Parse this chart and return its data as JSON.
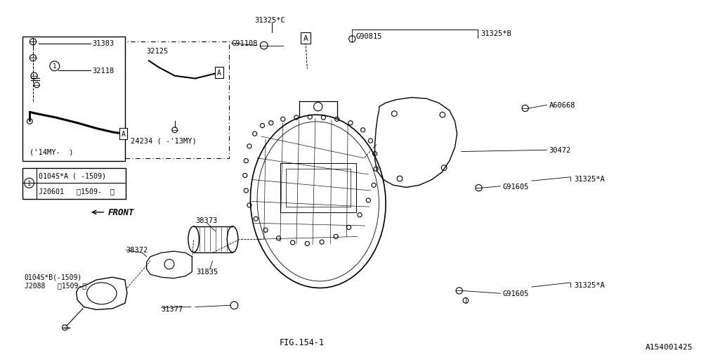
{
  "bg_color": "#ffffff",
  "line_color": "#000000",
  "fig_id": "FIG.154-1",
  "diagram_id": "A154001425"
}
